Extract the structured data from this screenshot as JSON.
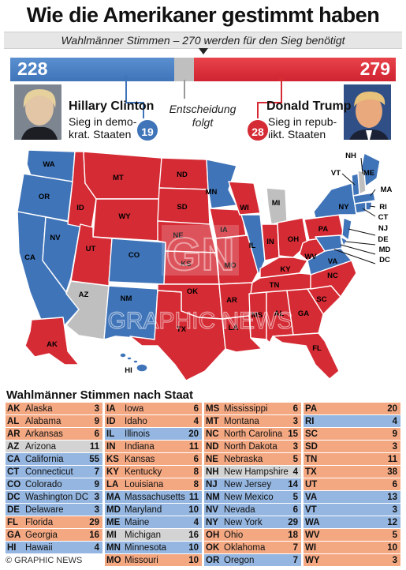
{
  "title": "Wie die Amerikaner gestimmt haben",
  "subtitle": "Wahlmänner Stimmen – 270 werden für den Sieg benötigt",
  "colors": {
    "dem": "#3f74b9",
    "rep": "#d52b34",
    "pending": "#bfbfbf"
  },
  "tally": {
    "dem": 228,
    "rep": 279
  },
  "clinton": {
    "name": "Hillary Clinton",
    "desc_line1": "Sieg in demo-",
    "desc_line2": "krat. Staaten",
    "states_won": 19
  },
  "trump": {
    "name": "Donald Trump",
    "desc_line1": "Sieg in repub-",
    "desc_line2": "likt. Staaten",
    "states_won": 28
  },
  "pending": {
    "line1": "Entscheidung",
    "line2": "folgt"
  },
  "map_labels": [
    "WA",
    "OR",
    "CA",
    "ID",
    "NV",
    "MT",
    "WY",
    "UT",
    "AZ",
    "CO",
    "NM",
    "ND",
    "SD",
    "NE",
    "KS",
    "OK",
    "TX",
    "MN",
    "IA",
    "MO",
    "AR",
    "LA",
    "WI",
    "IL",
    "MI",
    "IN",
    "OH",
    "KY",
    "TN",
    "MS",
    "AL",
    "GA",
    "FL",
    "SC",
    "NC",
    "VA",
    "WV",
    "PA",
    "NY",
    "ME",
    "VT",
    "NH",
    "MA",
    "RI",
    "CT",
    "NJ",
    "DE",
    "MD",
    "DC",
    "AK",
    "HI"
  ],
  "watermark": "GRAPHIC NEWS",
  "table": {
    "title": "Wahlmänner Stimmen nach Staat",
    "columns": [
      [
        {
          "a": "AK",
          "n": "Alaska",
          "v": "3",
          "p": "r"
        },
        {
          "a": "AL",
          "n": "Alabama",
          "v": "9",
          "p": "r"
        },
        {
          "a": "AR",
          "n": "Arkansas",
          "v": "6",
          "p": "r"
        },
        {
          "a": "AZ",
          "n": "Arizona",
          "v": "11",
          "p": "t"
        },
        {
          "a": "CA",
          "n": "California",
          "v": "55",
          "p": "d"
        },
        {
          "a": "CT",
          "n": "Connecticut",
          "v": "7",
          "p": "d"
        },
        {
          "a": "CO",
          "n": "Colorado",
          "v": "9",
          "p": "d"
        },
        {
          "a": "DC",
          "n": "Washington DC",
          "v": "3",
          "p": "d"
        },
        {
          "a": "DE",
          "n": "Delaware",
          "v": "3",
          "p": "d"
        },
        {
          "a": "FL",
          "n": "Florida",
          "v": "29",
          "p": "r"
        },
        {
          "a": "GA",
          "n": "Georgia",
          "v": "16",
          "p": "r"
        },
        {
          "a": "HI",
          "n": "Hawaii",
          "v": "4",
          "p": "d"
        }
      ],
      [
        {
          "a": "IA",
          "n": "Iowa",
          "v": "6",
          "p": "r"
        },
        {
          "a": "ID",
          "n": "Idaho",
          "v": "4",
          "p": "r"
        },
        {
          "a": "IL",
          "n": "Illinois",
          "v": "20",
          "p": "d"
        },
        {
          "a": "IN",
          "n": "Indiana",
          "v": "11",
          "p": "r"
        },
        {
          "a": "KS",
          "n": "Kansas",
          "v": "6",
          "p": "r"
        },
        {
          "a": "KY",
          "n": "Kentucky",
          "v": "8",
          "p": "r"
        },
        {
          "a": "LA",
          "n": "Louisiana",
          "v": "8",
          "p": "r"
        },
        {
          "a": "MA",
          "n": "Massachusetts",
          "v": "11",
          "p": "d"
        },
        {
          "a": "MD",
          "n": "Maryland",
          "v": "10",
          "p": "d"
        },
        {
          "a": "ME",
          "n": "Maine",
          "v": "4",
          "p": "d"
        },
        {
          "a": "MI",
          "n": "Michigan",
          "v": "16",
          "p": "t"
        },
        {
          "a": "MN",
          "n": "Minnesota",
          "v": "10",
          "p": "d"
        },
        {
          "a": "MO",
          "n": "Missouri",
          "v": "10",
          "p": "r"
        }
      ],
      [
        {
          "a": "MS",
          "n": "Mississippi",
          "v": "6",
          "p": "r"
        },
        {
          "a": "MT",
          "n": "Montana",
          "v": "3",
          "p": "r"
        },
        {
          "a": "NC",
          "n": "North Carolina",
          "v": "15",
          "p": "r"
        },
        {
          "a": "ND",
          "n": "North Dakota",
          "v": "3",
          "p": "r"
        },
        {
          "a": "NE",
          "n": "Nebraska",
          "v": "5",
          "p": "r"
        },
        {
          "a": "NH",
          "n": "New Hampshire",
          "v": "4",
          "p": "t"
        },
        {
          "a": "NJ",
          "n": "New Jersey",
          "v": "14",
          "p": "d"
        },
        {
          "a": "NM",
          "n": "New Mexico",
          "v": "5",
          "p": "d"
        },
        {
          "a": "NV",
          "n": "Nevada",
          "v": "6",
          "p": "d"
        },
        {
          "a": "NY",
          "n": "New York",
          "v": "29",
          "p": "d"
        },
        {
          "a": "OH",
          "n": "Ohio",
          "v": "18",
          "p": "r"
        },
        {
          "a": "OK",
          "n": "Oklahoma",
          "v": "7",
          "p": "r"
        },
        {
          "a": "OR",
          "n": "Oregon",
          "v": "7",
          "p": "d"
        }
      ],
      [
        {
          "a": "PA",
          "n": "",
          "v": "20",
          "p": "r"
        },
        {
          "a": "RI",
          "n": "",
          "v": "4",
          "p": "d"
        },
        {
          "a": "SC",
          "n": "",
          "v": "9",
          "p": "r"
        },
        {
          "a": "SD",
          "n": "",
          "v": "3",
          "p": "r"
        },
        {
          "a": "TN",
          "n": "",
          "v": "11",
          "p": "r"
        },
        {
          "a": "TX",
          "n": "",
          "v": "38",
          "p": "r"
        },
        {
          "a": "UT",
          "n": "",
          "v": "6",
          "p": "r"
        },
        {
          "a": "VA",
          "n": "",
          "v": "13",
          "p": "d"
        },
        {
          "a": "VT",
          "n": "",
          "v": "3",
          "p": "d"
        },
        {
          "a": "WA",
          "n": "",
          "v": "12",
          "p": "d"
        },
        {
          "a": "WV",
          "n": "",
          "v": "5",
          "p": "r"
        },
        {
          "a": "WI",
          "n": "",
          "v": "10",
          "p": "r"
        },
        {
          "a": "WY",
          "n": "",
          "v": "3",
          "p": "r"
        }
      ]
    ]
  },
  "footer": "© GRAPHIC NEWS"
}
